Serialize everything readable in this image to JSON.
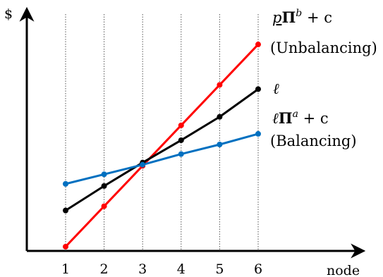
{
  "chart_data": {
    "type": "line",
    "xlabel": "node",
    "ylabel": "$",
    "x": [
      1,
      2,
      3,
      4,
      5,
      6
    ],
    "x_tick_labels": [
      "1",
      "2",
      "3",
      "4",
      "5",
      "6"
    ],
    "ylim": [
      0,
      10
    ],
    "vertical_gridlines": true,
    "legend": "direct labels at right end of lines",
    "series": [
      {
        "name": "p̲Π^b + c (Unbalancing)",
        "color": "#ff0000",
        "values": [
          0.2,
          2.1,
          4.0,
          5.9,
          7.8,
          9.7
        ]
      },
      {
        "name": "ℓ",
        "color": "#000000",
        "values": [
          1.9,
          3.05,
          4.15,
          5.2,
          6.3,
          7.6
        ]
      },
      {
        "name": "ℓΠ^a + c (Balancing)",
        "color": "#0070c0",
        "values": [
          3.15,
          3.6,
          4.05,
          4.55,
          5.0,
          5.5
        ]
      }
    ],
    "series_labels": {
      "unbalancing_math": {
        "p": "p",
        "Pi": "Π",
        "sup": "b",
        "rest": " + c"
      },
      "unbalancing_note": "(Unbalancing)",
      "ell_math": "ℓ",
      "balancing_math": {
        "l": "ℓ",
        "Pi": "Π",
        "sup": "a",
        "rest": " + c"
      },
      "balancing_note": "(Balancing)"
    }
  }
}
